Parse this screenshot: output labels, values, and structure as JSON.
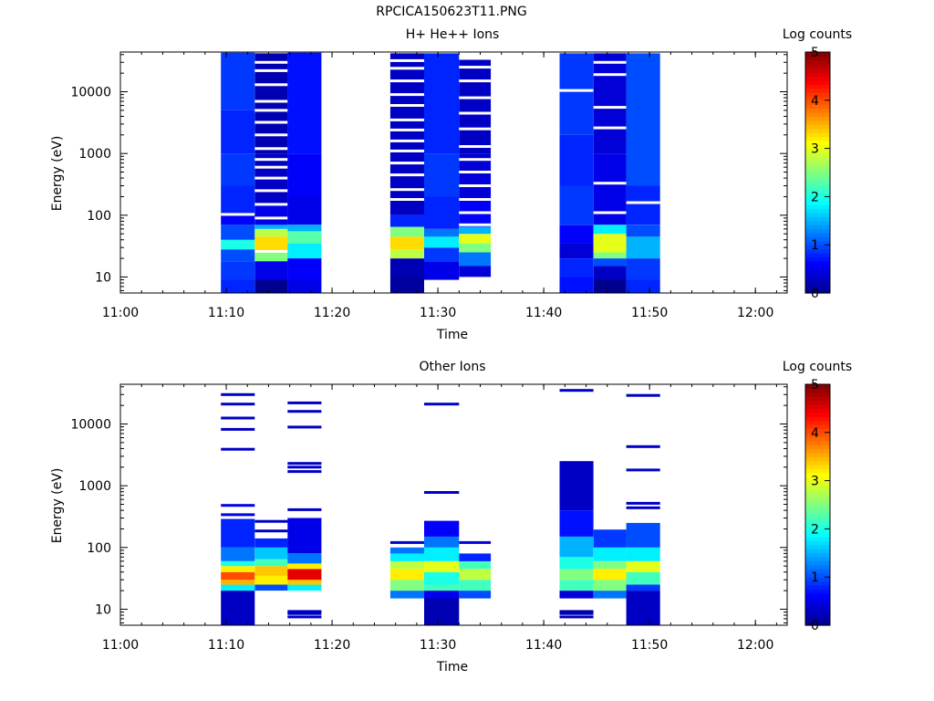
{
  "title": "RPCICA150623T11.PNG",
  "colormap": [
    "#00008f",
    "#0000ff",
    "#0080ff",
    "#00ffff",
    "#80ff80",
    "#ffff00",
    "#ff8000",
    "#ff0000",
    "#800000"
  ],
  "chart_data": [
    {
      "type": "heatmap",
      "title": "H+ He++ Ions",
      "xlabel": "Time",
      "ylabel": "Energy (eV)",
      "yscale": "log",
      "ylim": [
        5.5,
        44000
      ],
      "xlim": [
        "11:00",
        "12:03"
      ],
      "xticks": [
        "11:00",
        "11:10",
        "11:20",
        "11:30",
        "11:40",
        "11:50",
        "12:00"
      ],
      "yticks": [
        10,
        100,
        1000,
        10000
      ],
      "yticklabels": [
        "10",
        "100",
        "1000",
        "10000"
      ],
      "colorbar": {
        "label": "Log counts",
        "range": [
          0,
          5
        ],
        "ticks": [
          "0",
          "1",
          "2",
          "3",
          "4",
          "5"
        ]
      },
      "columns": [
        {
          "start": "11:09.5",
          "end": "11:12.7",
          "emin": 5.5,
          "emax": 43000,
          "bands": [
            [
              5.5,
              9,
              0.8
            ],
            [
              9,
              18,
              0.9
            ],
            [
              18,
              28,
              1.0
            ],
            [
              28,
              40,
              2.0
            ],
            [
              40,
              70,
              1.0
            ],
            [
              70,
              100,
              0.6
            ],
            [
              100,
              300,
              0.8
            ],
            [
              300,
              1000,
              0.9
            ],
            [
              1000,
              5000,
              0.8
            ],
            [
              5000,
              43000,
              0.9
            ]
          ],
          "gaps": [
            103
          ]
        },
        {
          "start": "11:12.7",
          "end": "11:15.8",
          "emin": 5.5,
          "emax": 42000,
          "bands": [
            [
              5.5,
              9,
              0.0
            ],
            [
              9,
              18,
              0.5
            ],
            [
              18,
              25,
              2.5
            ],
            [
              25,
              45,
              3.3
            ],
            [
              45,
              60,
              2.8
            ],
            [
              60,
              70,
              1.5
            ],
            [
              70,
              150,
              0.5
            ],
            [
              150,
              1000,
              0.3
            ],
            [
              1000,
              42000,
              0.2
            ]
          ],
          "gaps": [
            26,
            90,
            150,
            250,
            400,
            600,
            800,
            1200,
            2000,
            3200,
            5000,
            7000,
            13000,
            22000,
            30000
          ]
        },
        {
          "start": "11:15.8",
          "end": "11:19",
          "emin": 5.5,
          "emax": 43000,
          "bands": [
            [
              5.5,
              9,
              0.5
            ],
            [
              9,
              20,
              0.6
            ],
            [
              20,
              35,
              1.8
            ],
            [
              35,
              55,
              2.3
            ],
            [
              55,
              70,
              1.5
            ],
            [
              70,
              200,
              0.5
            ],
            [
              200,
              1000,
              0.6
            ],
            [
              1000,
              43000,
              0.7
            ]
          ],
          "gaps": []
        },
        {
          "start": "11:25.5",
          "end": "11:28.7",
          "emin": 5.5,
          "emax": 42000,
          "bands": [
            [
              5.5,
              10,
              0.1
            ],
            [
              10,
              20,
              0.2
            ],
            [
              20,
              28,
              2.8
            ],
            [
              28,
              45,
              3.3
            ],
            [
              45,
              65,
              2.5
            ],
            [
              65,
              100,
              0.8
            ],
            [
              100,
              300,
              0.3
            ],
            [
              300,
              42000,
              0.3
            ]
          ],
          "gaps": [
            180,
            260,
            450,
            700,
            1100,
            1600,
            2400,
            3500,
            6000,
            9000,
            15000,
            24000,
            32000
          ]
        },
        {
          "start": "11:28.7",
          "end": "11:32",
          "emin": 9,
          "emax": 42000,
          "bands": [
            [
              9,
              18,
              0.5
            ],
            [
              18,
              30,
              0.9
            ],
            [
              30,
              45,
              1.8
            ],
            [
              45,
              60,
              1.2
            ],
            [
              60,
              200,
              0.8
            ],
            [
              200,
              1000,
              0.9
            ],
            [
              1000,
              42000,
              0.8
            ]
          ],
          "gaps": []
        },
        {
          "start": "11:32",
          "end": "11:35",
          "emin": 10,
          "emax": 33000,
          "bands": [
            [
              10,
              15,
              0.4
            ],
            [
              15,
              25,
              1.2
            ],
            [
              25,
              35,
              2.5
            ],
            [
              35,
              50,
              3.0
            ],
            [
              50,
              65,
              1.5
            ],
            [
              65,
              200,
              0.6
            ],
            [
              200,
              1000,
              0.4
            ],
            [
              1000,
              33000,
              0.3
            ]
          ],
          "gaps": [
            70,
            110,
            180,
            300,
            500,
            800,
            1300,
            2500,
            4500,
            8000,
            15000,
            25000
          ]
        },
        {
          "start": "11:41.5",
          "end": "11:44.7",
          "emin": 5.5,
          "emax": 42000,
          "bands": [
            [
              5.5,
              10,
              0.7
            ],
            [
              10,
              20,
              0.8
            ],
            [
              20,
              35,
              0.4
            ],
            [
              35,
              70,
              0.6
            ],
            [
              70,
              300,
              0.9
            ],
            [
              300,
              2000,
              0.8
            ],
            [
              2000,
              42000,
              0.9
            ]
          ],
          "gaps": [
            10500
          ]
        },
        {
          "start": "11:44.7",
          "end": "11:47.8",
          "emin": 5.5,
          "emax": 42000,
          "bands": [
            [
              5.5,
              9,
              0.0
            ],
            [
              9,
              15,
              0.3
            ],
            [
              15,
              20,
              1.0
            ],
            [
              20,
              25,
              2.5
            ],
            [
              25,
              50,
              3.0
            ],
            [
              50,
              70,
              1.8
            ],
            [
              70,
              200,
              0.5
            ],
            [
              200,
              1000,
              0.5
            ],
            [
              1000,
              42000,
              0.4
            ]
          ],
          "gaps": [
            110,
            330,
            2600,
            5600,
            19000,
            30000
          ]
        },
        {
          "start": "11:47.8",
          "end": "11:51",
          "emin": 5.5,
          "emax": 42000,
          "bands": [
            [
              5.5,
              9,
              0.8
            ],
            [
              9,
              20,
              0.9
            ],
            [
              20,
              45,
              1.5
            ],
            [
              45,
              70,
              1.0
            ],
            [
              70,
              300,
              0.8
            ],
            [
              300,
              42000,
              1.0
            ]
          ],
          "gaps": [
            160
          ]
        }
      ]
    },
    {
      "type": "heatmap",
      "title": "Other Ions",
      "xlabel": "Time",
      "ylabel": "Energy (eV)",
      "yscale": "log",
      "ylim": [
        5.5,
        44000
      ],
      "xlim": [
        "11:00",
        "12:03"
      ],
      "xticks": [
        "11:00",
        "11:10",
        "11:20",
        "11:30",
        "11:40",
        "11:50",
        "12:00"
      ],
      "yticks": [
        10,
        100,
        1000,
        10000
      ],
      "yticklabels": [
        "10",
        "100",
        "1000",
        "10000"
      ],
      "colorbar": {
        "label": "Log counts",
        "range": [
          0,
          5
        ],
        "ticks": [
          "0",
          "1",
          "2",
          "3",
          "4",
          "5"
        ]
      },
      "columns": [
        {
          "start": "11:09.5",
          "end": "11:12.7",
          "emin": 5.5,
          "emax": 290,
          "bands": [
            [
              5.5,
              20,
              0.3
            ],
            [
              20,
              25,
              1.8
            ],
            [
              25,
              30,
              3.5
            ],
            [
              30,
              40,
              4.0
            ],
            [
              40,
              50,
              3.2
            ],
            [
              50,
              60,
              2.0
            ],
            [
              60,
              100,
              1.2
            ],
            [
              100,
              290,
              0.8
            ]
          ],
          "lines": [
            [
              340,
              0.5
            ],
            [
              480,
              0.5
            ],
            [
              3900,
              0.3
            ],
            [
              8200,
              0.3
            ],
            [
              12500,
              0.3
            ],
            [
              21000,
              0.3
            ],
            [
              30000,
              0.3
            ]
          ]
        },
        {
          "start": "11:12.7",
          "end": "11:15.8",
          "emin": 20,
          "emax": 140,
          "bands": [
            [
              20,
              25,
              1.0
            ],
            [
              25,
              35,
              3.2
            ],
            [
              35,
              50,
              3.4
            ],
            [
              50,
              65,
              2.2
            ],
            [
              65,
              100,
              1.6
            ],
            [
              100,
              140,
              0.8
            ]
          ],
          "lines": [
            [
              185,
              0.3
            ],
            [
              265,
              0.3
            ]
          ]
        },
        {
          "start": "11:15.8",
          "end": "11:19",
          "emin": 20,
          "emax": 300,
          "bands": [
            [
              20,
              25,
              1.8
            ],
            [
              25,
              30,
              3.4
            ],
            [
              30,
              45,
              4.5
            ],
            [
              45,
              55,
              3.2
            ],
            [
              55,
              80,
              1.2
            ],
            [
              80,
              300,
              0.5
            ]
          ],
          "lines": [
            [
              7.5,
              0.3
            ],
            [
              8.5,
              0.3
            ],
            [
              9.2,
              0.3
            ],
            [
              410,
              0.3
            ],
            [
              1700,
              0.3
            ],
            [
              2000,
              0.3
            ],
            [
              2300,
              0.3
            ],
            [
              8900,
              0.3
            ],
            [
              16000,
              0.3
            ],
            [
              22000,
              0.3
            ]
          ]
        },
        {
          "start": "11:25.5",
          "end": "11:28.7",
          "emin": 15,
          "emax": 100,
          "bands": [
            [
              15,
              20,
              1.2
            ],
            [
              20,
              30,
              2.5
            ],
            [
              30,
              45,
              3.2
            ],
            [
              45,
              60,
              2.8
            ],
            [
              60,
              80,
              1.8
            ],
            [
              80,
              100,
              1.2
            ]
          ],
          "lines": [
            [
              120,
              0.3
            ]
          ]
        },
        {
          "start": "11:28.7",
          "end": "11:32",
          "emin": 5.5,
          "emax": 270,
          "bands": [
            [
              5.5,
              15,
              0.2
            ],
            [
              15,
              20,
              0.5
            ],
            [
              20,
              25,
              2.2
            ],
            [
              25,
              40,
              2.0
            ],
            [
              40,
              60,
              3.0
            ],
            [
              60,
              100,
              1.8
            ],
            [
              100,
              150,
              1.2
            ],
            [
              150,
              270,
              0.6
            ]
          ],
          "lines": [
            [
              780,
              0.3
            ],
            [
              21000,
              0.3
            ]
          ]
        },
        {
          "start": "11:32",
          "end": "11:35",
          "emin": 15,
          "emax": 80,
          "bands": [
            [
              15,
              20,
              1.0
            ],
            [
              20,
              30,
              2.2
            ],
            [
              30,
              45,
              2.8
            ],
            [
              45,
              60,
              2.2
            ],
            [
              60,
              80,
              0.8
            ]
          ],
          "lines": [
            [
              120,
              0.4
            ]
          ]
        },
        {
          "start": "11:41.5",
          "end": "11:44.7",
          "emin": 15,
          "emax": 2500,
          "bands": [
            [
              15,
              20,
              0.4
            ],
            [
              20,
              30,
              2.2
            ],
            [
              30,
              45,
              2.5
            ],
            [
              45,
              70,
              2.0
            ],
            [
              70,
              150,
              1.5
            ],
            [
              150,
              400,
              0.7
            ],
            [
              400,
              2500,
              0.3
            ]
          ],
          "lines": [
            [
              7.5,
              0.2
            ],
            [
              8.5,
              0.2
            ],
            [
              9.2,
              0.2
            ],
            [
              35000,
              0.3
            ]
          ]
        },
        {
          "start": "11:44.7",
          "end": "11:47.8",
          "emin": 15,
          "emax": 195,
          "bands": [
            [
              15,
              20,
              1.2
            ],
            [
              20,
              30,
              2.5
            ],
            [
              30,
              45,
              3.2
            ],
            [
              45,
              60,
              2.5
            ],
            [
              60,
              100,
              1.8
            ],
            [
              100,
              195,
              0.9
            ]
          ],
          "lines": []
        },
        {
          "start": "11:47.8",
          "end": "11:51",
          "emin": 5.5,
          "emax": 250,
          "bands": [
            [
              5.5,
              20,
              0.3
            ],
            [
              20,
              25,
              0.9
            ],
            [
              25,
              40,
              2.2
            ],
            [
              40,
              60,
              3.0
            ],
            [
              60,
              100,
              1.8
            ],
            [
              100,
              250,
              1.0
            ]
          ],
          "lines": [
            [
              440,
              0.3
            ],
            [
              520,
              0.3
            ],
            [
              1800,
              0.3
            ],
            [
              4300,
              0.3
            ],
            [
              29000,
              0.3
            ]
          ]
        }
      ]
    }
  ]
}
